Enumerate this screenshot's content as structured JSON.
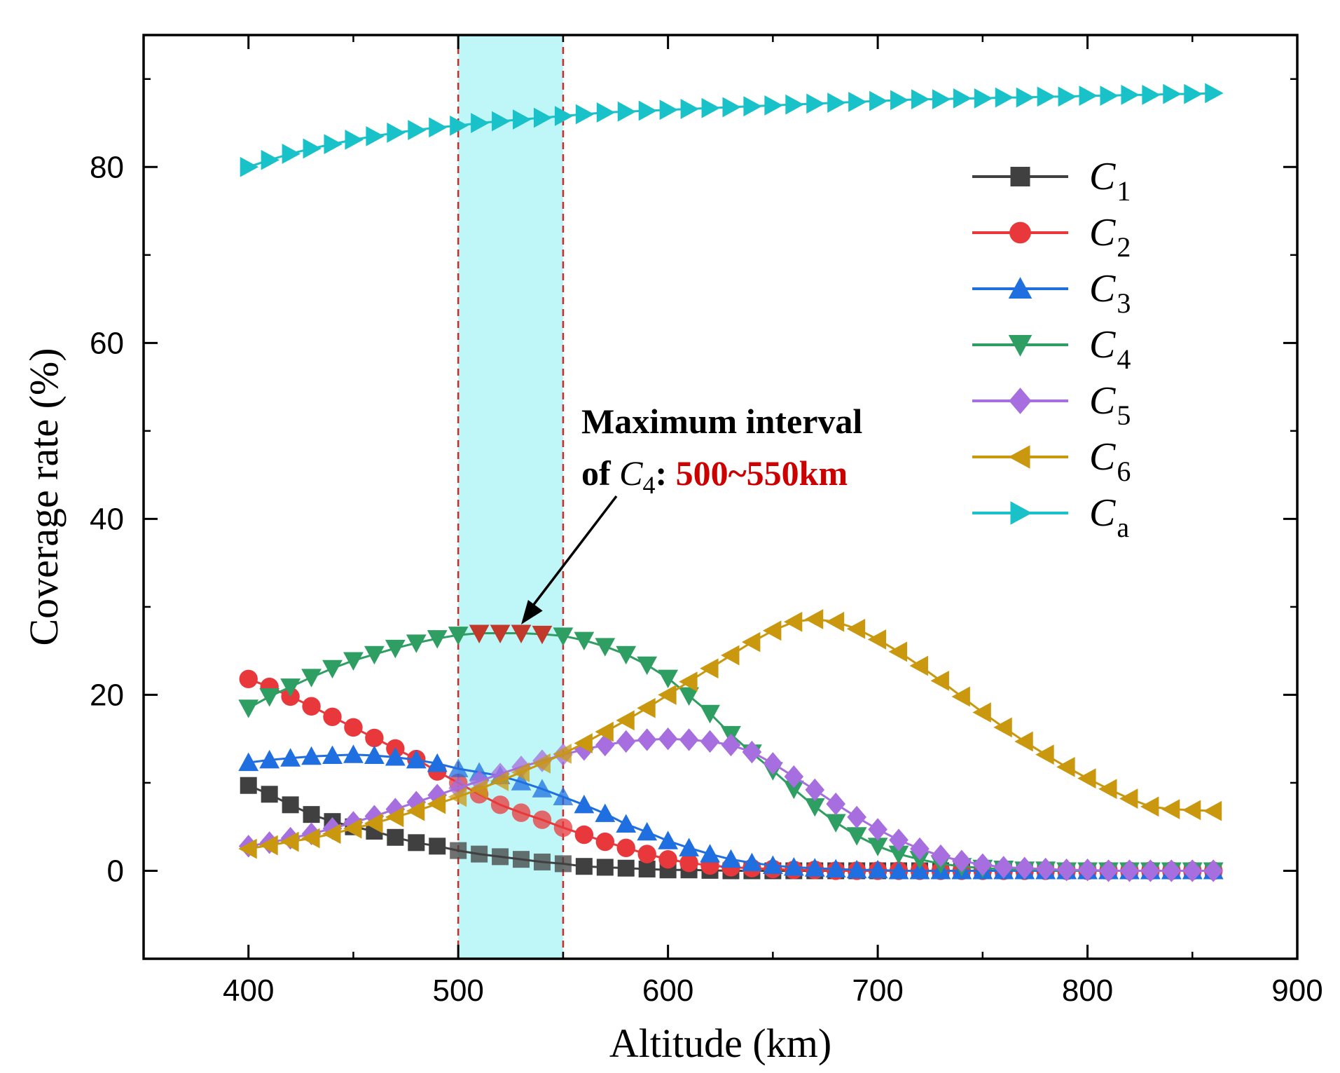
{
  "chart_data": {
    "type": "scatter",
    "xlabel": "Altitude (km)",
    "ylabel": "Coverage rate (%)",
    "xlim": [
      350,
      900
    ],
    "ylim": [
      -10,
      95
    ],
    "xticks": [
      "400",
      "500",
      "600",
      "700",
      "800",
      "900"
    ],
    "yticks": [
      "0",
      "20",
      "40",
      "60",
      "80"
    ],
    "x": [
      400,
      410,
      420,
      430,
      440,
      450,
      460,
      470,
      480,
      490,
      500,
      510,
      520,
      530,
      540,
      550,
      560,
      570,
      580,
      590,
      600,
      610,
      620,
      630,
      640,
      650,
      660,
      670,
      680,
      690,
      700,
      710,
      720,
      730,
      740,
      750,
      760,
      770,
      780,
      790,
      800,
      810,
      820,
      830,
      840,
      850,
      860
    ],
    "series": [
      {
        "name": "C1",
        "label": "C",
        "sub": "1",
        "color": "#404040",
        "marker": "square",
        "values": [
          9.7,
          8.7,
          7.5,
          6.4,
          5.6,
          5.0,
          4.5,
          3.8,
          3.2,
          2.8,
          2.3,
          1.9,
          1.6,
          1.3,
          1.0,
          0.8,
          0.5,
          0.4,
          0.3,
          0.2,
          0.1,
          0.1,
          0.05,
          0,
          0,
          0,
          0,
          0,
          0,
          0,
          0,
          0,
          0,
          0,
          0,
          0,
          0,
          0,
          0,
          0,
          0,
          0,
          0,
          0,
          0,
          0,
          0
        ]
      },
      {
        "name": "C2",
        "label": "C",
        "sub": "2",
        "color": "#e8383b",
        "marker": "circle",
        "values": [
          21.8,
          20.9,
          19.8,
          18.7,
          17.5,
          16.3,
          15.1,
          13.9,
          12.7,
          11.3,
          10.0,
          8.7,
          7.5,
          6.6,
          5.8,
          4.9,
          4.1,
          3.3,
          2.6,
          1.9,
          1.3,
          0.9,
          0.6,
          0.4,
          0.3,
          0.2,
          0.1,
          0.1,
          0,
          0,
          0,
          0,
          0,
          0,
          0,
          0,
          0,
          0,
          0,
          0,
          0,
          0,
          0,
          0,
          0,
          0,
          0
        ]
      },
      {
        "name": "C3",
        "label": "C",
        "sub": "3",
        "color": "#1f6fe0",
        "marker": "triangle-up",
        "values": [
          12.3,
          12.6,
          12.8,
          13.0,
          13.1,
          13.2,
          13.1,
          12.9,
          12.6,
          12.2,
          11.6,
          11.2,
          10.8,
          10.1,
          9.3,
          8.4,
          7.5,
          6.5,
          5.3,
          4.4,
          3.4,
          2.6,
          1.9,
          1.3,
          0.9,
          0.6,
          0.4,
          0.3,
          0.2,
          0.1,
          0.1,
          0,
          0,
          0,
          0,
          0,
          0,
          0,
          0,
          0,
          0,
          0,
          0,
          0,
          0,
          0,
          0
        ]
      },
      {
        "name": "C4",
        "label": "C",
        "sub": "4",
        "color": "#2e9e62",
        "marker": "triangle-down",
        "values": [
          18.5,
          19.8,
          20.9,
          22.0,
          23.0,
          23.9,
          24.6,
          25.3,
          25.9,
          26.4,
          26.8,
          27.0,
          27.0,
          27.0,
          26.9,
          26.7,
          26.2,
          25.5,
          24.6,
          23.4,
          21.9,
          19.9,
          17.9,
          15.5,
          13.4,
          11.4,
          9.3,
          7.3,
          5.5,
          4.0,
          2.8,
          1.9,
          1.3,
          0.8,
          0.5,
          0.3,
          0.2,
          0.1,
          0.1,
          0,
          0,
          0,
          0,
          0,
          0,
          0,
          0
        ]
      },
      {
        "name": "C5",
        "label": "C",
        "sub": "5",
        "color": "#a66ede",
        "marker": "diamond",
        "values": [
          2.8,
          3.2,
          3.7,
          4.2,
          4.8,
          5.5,
          6.2,
          7.0,
          7.8,
          8.6,
          9.4,
          10.2,
          11.0,
          11.8,
          12.5,
          13.2,
          13.8,
          14.3,
          14.7,
          14.9,
          15.0,
          14.9,
          14.7,
          14.3,
          13.5,
          12.2,
          10.7,
          9.2,
          7.6,
          6.1,
          4.7,
          3.5,
          2.5,
          1.7,
          1.1,
          0.7,
          0.4,
          0.3,
          0.2,
          0.1,
          0.1,
          0,
          0,
          0,
          0,
          0,
          0
        ]
      },
      {
        "name": "C6",
        "label": "C",
        "sub": "6",
        "color": "#c9980f",
        "marker": "triangle-left",
        "values": [
          2.5,
          2.9,
          3.3,
          3.7,
          4.2,
          4.8,
          5.4,
          6.1,
          6.8,
          7.6,
          8.4,
          9.3,
          10.2,
          11.2,
          12.2,
          13.3,
          14.5,
          15.8,
          17.1,
          18.5,
          20.0,
          21.5,
          23.0,
          24.5,
          26.0,
          27.3,
          28.3,
          28.6,
          28.3,
          27.5,
          26.3,
          24.9,
          23.3,
          21.6,
          19.8,
          18.0,
          16.3,
          14.7,
          13.2,
          11.8,
          10.5,
          9.3,
          8.2,
          7.3,
          7.0,
          6.9,
          6.8
        ]
      },
      {
        "name": "Ca",
        "label": "C",
        "sub": "a",
        "color": "#19c2c8",
        "marker": "triangle-right",
        "values": [
          80.0,
          80.8,
          81.5,
          82.1,
          82.6,
          83.1,
          83.5,
          83.9,
          84.2,
          84.5,
          84.7,
          85.0,
          85.2,
          85.4,
          85.6,
          85.8,
          86.0,
          86.2,
          86.3,
          86.4,
          86.5,
          86.6,
          86.7,
          86.8,
          86.9,
          87.0,
          87.1,
          87.2,
          87.3,
          87.4,
          87.5,
          87.6,
          87.7,
          87.7,
          87.8,
          87.8,
          87.9,
          87.9,
          88.0,
          88.0,
          88.1,
          88.1,
          88.2,
          88.2,
          88.3,
          88.3,
          88.4
        ]
      }
    ],
    "highlight": {
      "x0": 500,
      "x1": 550,
      "color": "#bff7f8",
      "line_color": "#d62728"
    },
    "annotation": {
      "line1": "Maximum interval",
      "line2_prefix": "of ",
      "line2_var": "C",
      "line2_sub": "4",
      "line2_colon": ": ",
      "line2_value": "500~550km",
      "arrow_target": [
        530,
        28
      ]
    },
    "legend_position": "top-right",
    "grid": false
  }
}
